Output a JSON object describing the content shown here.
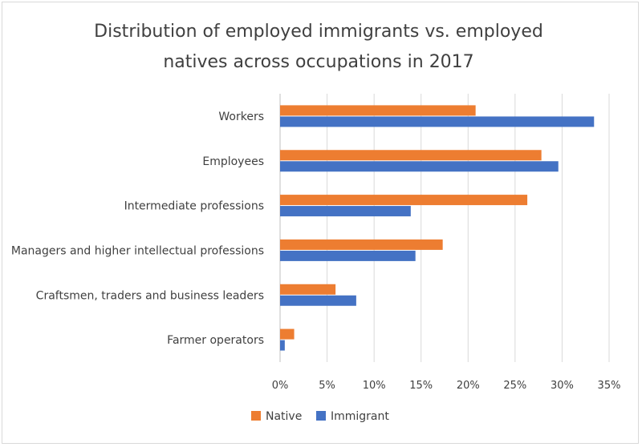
{
  "chart_data": {
    "type": "bar",
    "orientation": "horizontal",
    "title_lines": [
      "Distribution of employed immigrants vs. employed",
      "natives across occupations in 2017"
    ],
    "categories": [
      "Workers",
      "Employees",
      "Intermediate professions",
      "Managers and higher intellectual professions",
      "Craftsmen, traders and business leaders",
      "Farmer operators"
    ],
    "series": [
      {
        "name": "Native",
        "color": "#ed7d31",
        "values": [
          20.8,
          27.8,
          26.3,
          17.3,
          5.9,
          1.5
        ]
      },
      {
        "name": "Immigrant",
        "color": "#4472c4",
        "values": [
          33.4,
          29.6,
          13.9,
          14.4,
          8.1,
          0.5
        ]
      }
    ],
    "xlim": [
      0,
      35
    ],
    "x_ticks": [
      "0%",
      "5%",
      "10%",
      "15%",
      "20%",
      "25%",
      "30%",
      "35%"
    ],
    "grid": "vertical",
    "legend_position": "bottom",
    "xlabel": "",
    "ylabel": ""
  }
}
